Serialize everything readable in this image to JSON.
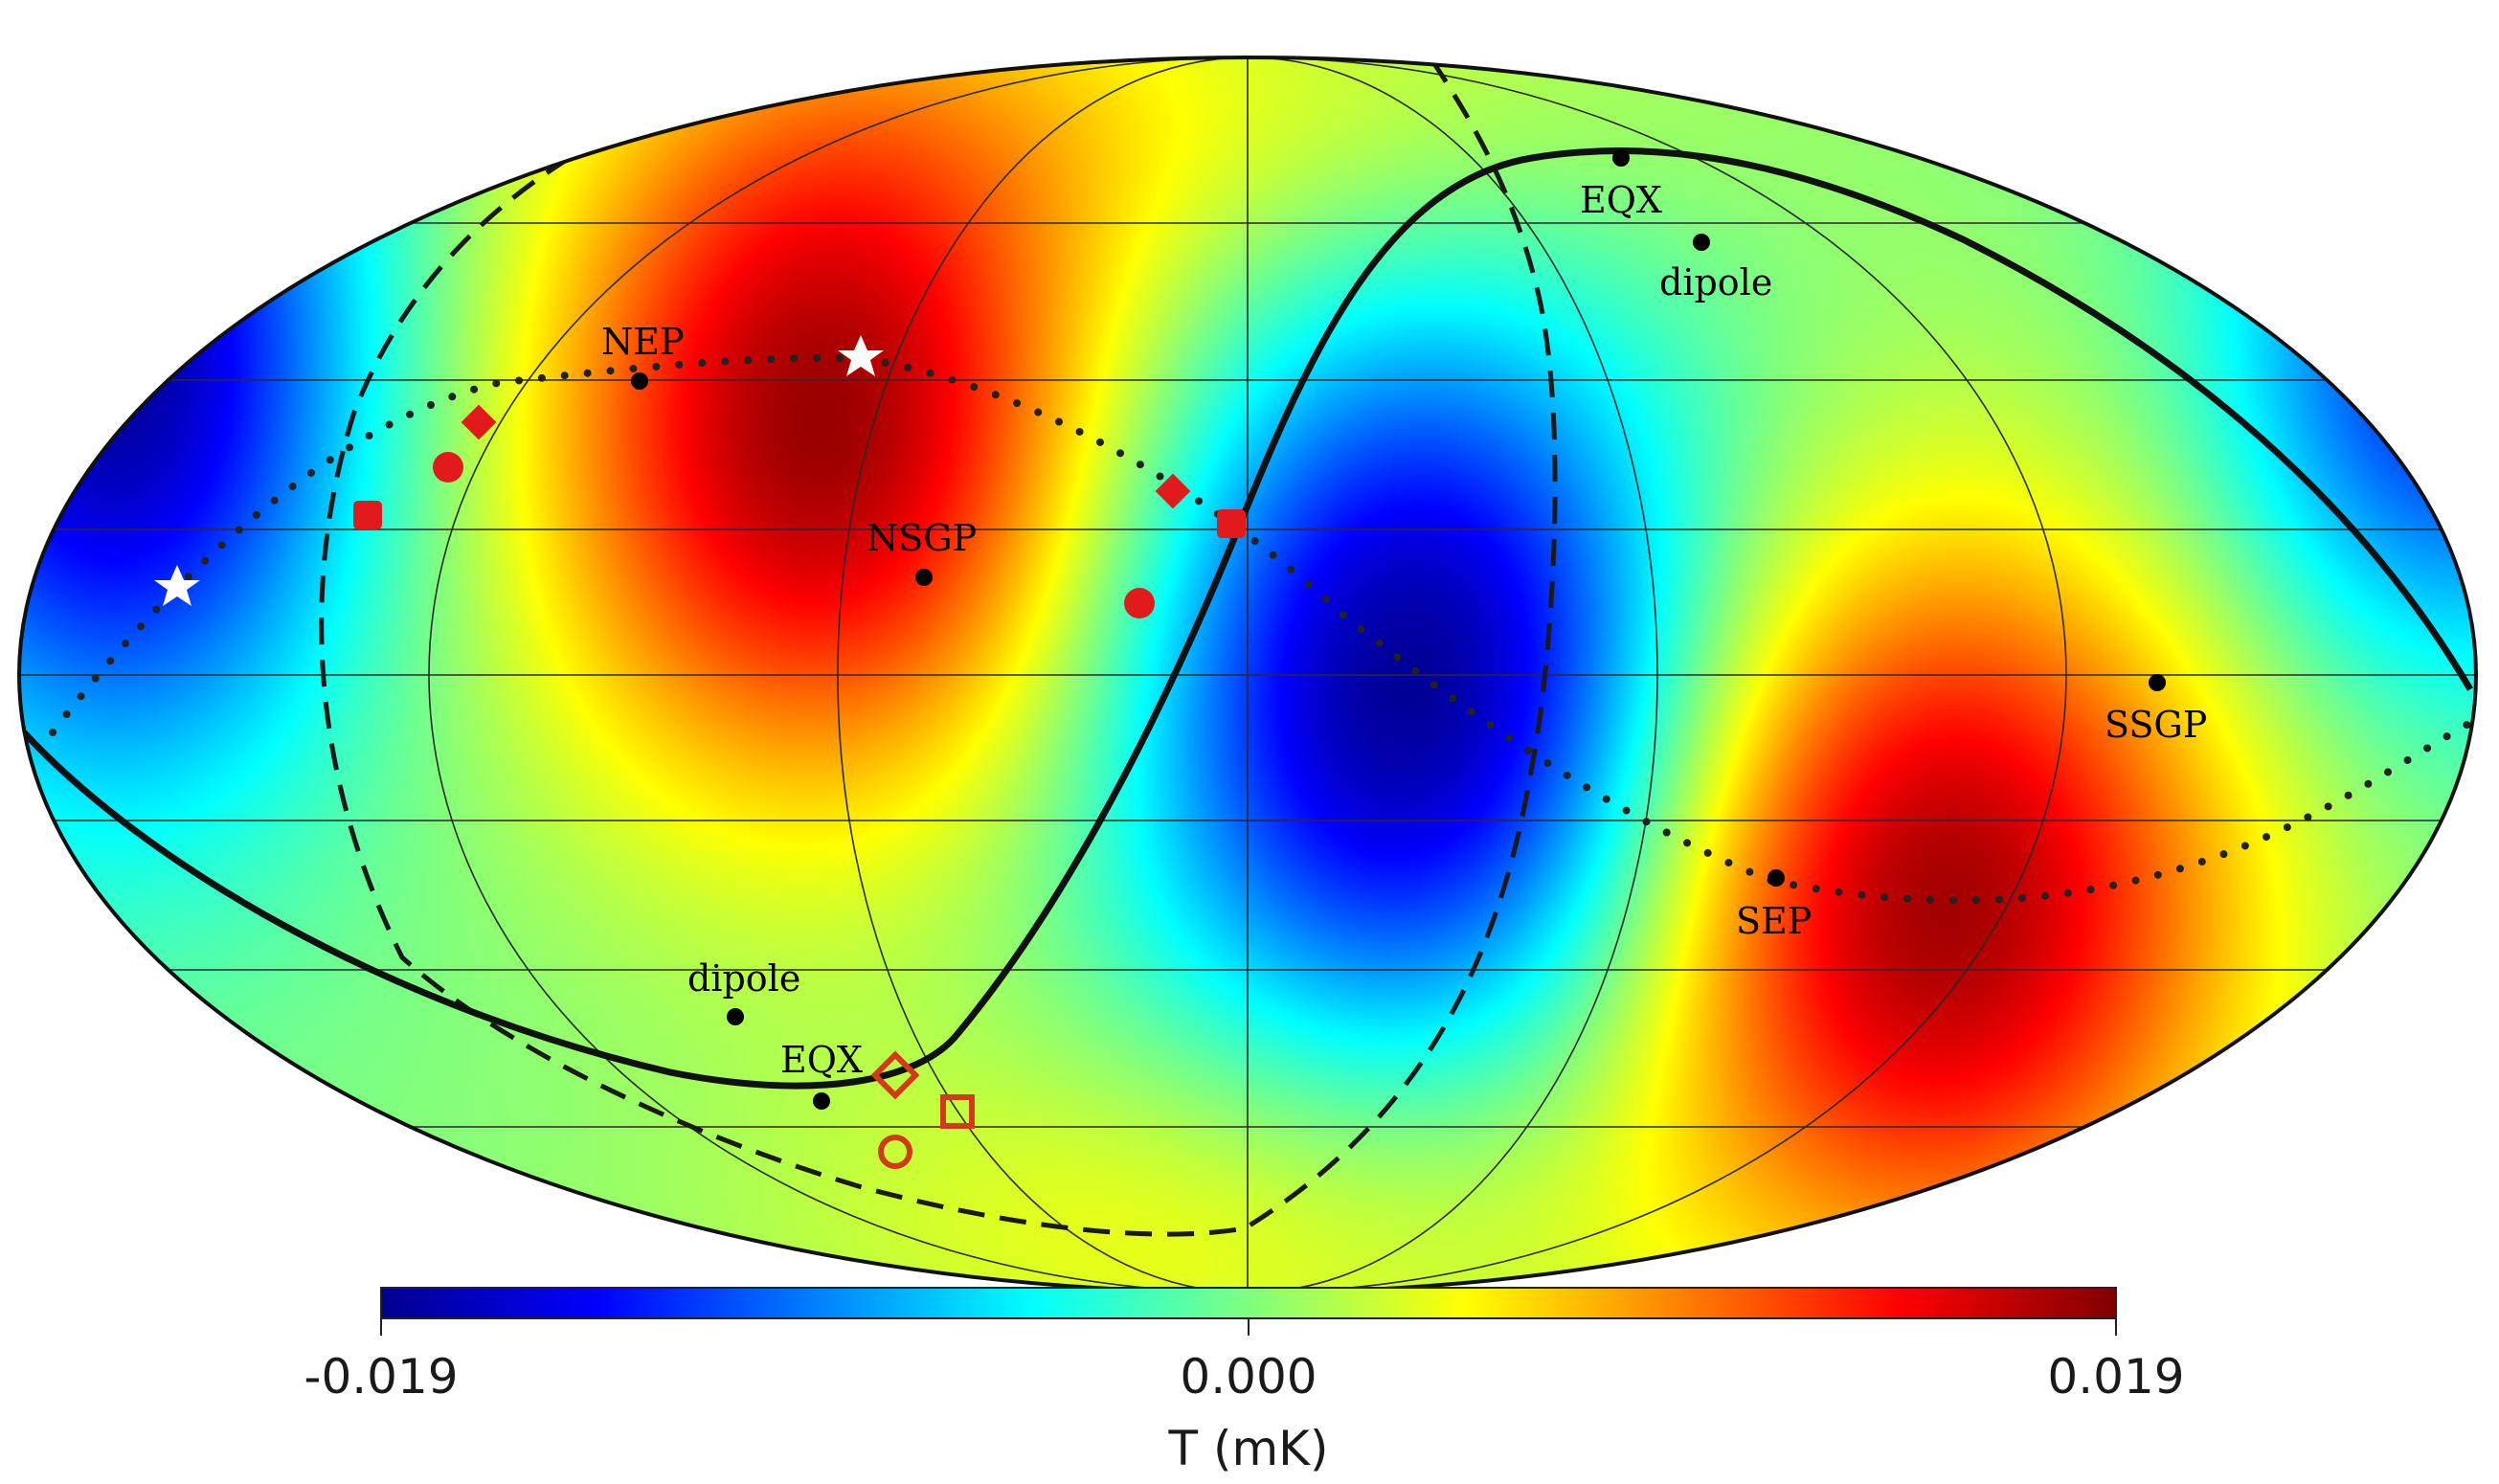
{
  "map": {
    "projection": "Mollweide",
    "field": "temperature"
  },
  "points": {
    "nep": "NEP",
    "nsgp": "NSGP",
    "eqx_north": "EQX",
    "dipole_north": "dipole",
    "ssgp": "SSGP",
    "sep": "SEP",
    "dipole_south": "dipole",
    "eqx_south": "EQX"
  },
  "colorbar": {
    "min_label": "-0.019",
    "mid_label": "0.000",
    "max_label": "0.019",
    "unit_label": "T (mK)",
    "min": -0.019,
    "max": 0.019,
    "colormap": "jet"
  },
  "colors": {
    "filled_markers": "#e31a1c",
    "open_markers": "#d33a1c",
    "star_markers": "#ffffff",
    "curves": "#111111"
  }
}
